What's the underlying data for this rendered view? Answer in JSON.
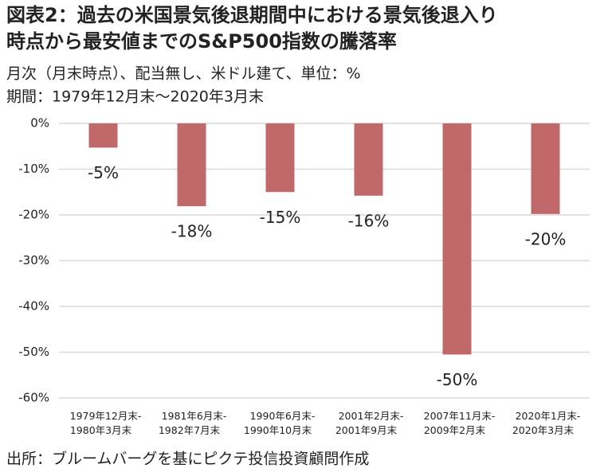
{
  "chart_data": {
    "type": "bar",
    "title": [
      "図表2：過去の米国景気後退期間中における景気後退入り",
      "時点から最安値までのS&P500指数の騰落率"
    ],
    "subtitle": [
      "月次（月末時点）、配当無し、米ドル建て、単位：%",
      "期間：1979年12月末～2020年3月末"
    ],
    "source": "出所：ブルームバーグを基にピクテ投信投資顧問作成",
    "categories": [
      [
        "1979年12月末-",
        "1980年3月末"
      ],
      [
        "1981年6月末-",
        "1982年7月末"
      ],
      [
        "1990年6月末-",
        "1990年10月末"
      ],
      [
        "2001年2月末-",
        "2001年9月末"
      ],
      [
        "2007年11月末-",
        "2009年2月末"
      ],
      [
        "2020年1月末-",
        "2020年3月末"
      ]
    ],
    "values": [
      -5.3,
      -18.1,
      -15.0,
      -15.8,
      -50.5,
      -19.8
    ],
    "value_labels": [
      "-5%",
      "-18%",
      "-15%",
      "-16%",
      "-50%",
      "-20%"
    ],
    "color": "#c1686b",
    "ylim": [
      -60,
      0
    ],
    "yticks": [
      {
        "value": 0,
        "label": "0%"
      },
      {
        "value": -10,
        "label": "-10%"
      },
      {
        "value": -20,
        "label": "-20%"
      },
      {
        "value": -30,
        "label": "-30%"
      },
      {
        "value": -40,
        "label": "-40%"
      },
      {
        "value": -50,
        "label": "-50%"
      },
      {
        "value": -60,
        "label": "-60%"
      }
    ],
    "grid": true
  }
}
